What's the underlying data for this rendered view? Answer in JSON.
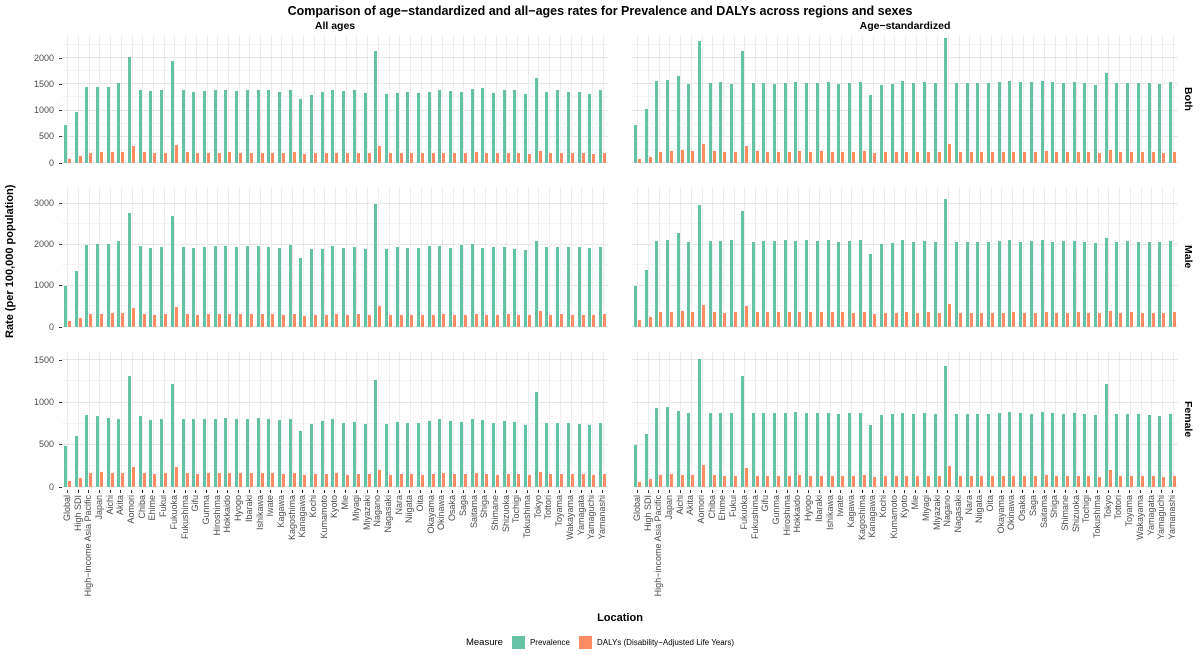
{
  "title": "Comparison of age−standardized and all−ages rates for Prevalence and DALYs across regions and sexes",
  "axes": {
    "y_title": "Rate (per 100,000 population)",
    "x_title": "Location"
  },
  "facets": {
    "columns": [
      "All ages",
      "Age−standardized"
    ],
    "rows": [
      "Both",
      "Male",
      "Female"
    ]
  },
  "legend": {
    "title": "Measure",
    "items": [
      {
        "label": "Prevalence",
        "color": "#66C2A5"
      },
      {
        "label": "DALYs (Disability−Adjusted Life Years)",
        "color": "#FC8D62"
      }
    ]
  },
  "colors": {
    "prevalence": "#66C2A5",
    "dalys": "#FC8D62",
    "grid_major": "#e7e7e7",
    "grid_minor": "#f4f4f4",
    "grid_vertical": "#ededed",
    "axis_text": "#4d4d4d"
  },
  "chart_data": {
    "type": "bar",
    "categories": [
      "Global",
      "High SDI",
      "High−income Asia Pacific",
      "Japan",
      "Aichi",
      "Akita",
      "Aomori",
      "Chiba",
      "Ehime",
      "Fukui",
      "Fukuoka",
      "Fukushima",
      "Gifu",
      "Gunma",
      "Hiroshima",
      "Hokkaido",
      "Hyogo",
      "Ibaraki",
      "Ishikawa",
      "Iwate",
      "Kagawa",
      "Kagoshima",
      "Kanagawa",
      "Kochi",
      "Kumamoto",
      "Kyoto",
      "Mie",
      "Miyagi",
      "Miyazaki",
      "Nagano",
      "Nagasaki",
      "Nara",
      "Niigata",
      "Oita",
      "Okayama",
      "Okinawa",
      "Osaka",
      "Saga",
      "Saitama",
      "Shiga",
      "Shimane",
      "Shizuoka",
      "Tochigi",
      "Tokushima",
      "Tokyo",
      "Tottori",
      "Toyama",
      "Wakayama",
      "Yamagata",
      "Yamaguchi",
      "Yamanashi"
    ],
    "legend_position": "bottom",
    "grid": true,
    "panels": [
      {
        "row": "Both",
        "col": "All ages",
        "ylim": [
          0,
          2440
        ],
        "yticks": [
          0,
          500,
          1000,
          1500,
          2000
        ],
        "series": [
          {
            "name": "Prevalence",
            "values": [
              725,
              980,
              1440,
              1450,
              1440,
              1520,
              2030,
              1400,
              1370,
              1390,
              1940,
              1400,
              1350,
              1370,
              1390,
              1400,
              1370,
              1390,
              1400,
              1390,
              1350,
              1400,
              1220,
              1300,
              1350,
              1390,
              1370,
              1390,
              1340,
              2140,
              1320,
              1330,
              1350,
              1330,
              1350,
              1400,
              1370,
              1350,
              1420,
              1430,
              1340,
              1390,
              1390,
              1320,
              1620,
              1350,
              1400,
              1360,
              1350,
              1310,
              1390
            ]
          },
          {
            "name": "DALYs (Disability−Adjusted Life Years)",
            "values": [
              85,
              135,
              200,
              210,
              215,
              215,
              330,
              205,
              195,
              200,
              340,
              205,
              195,
              200,
              200,
              205,
              200,
              200,
              200,
              200,
              195,
              205,
              175,
              190,
              195,
              200,
              185,
              195,
              190,
              330,
              185,
              185,
              190,
              185,
              190,
              200,
              195,
              190,
              205,
              200,
              185,
              195,
              195,
              180,
              230,
              190,
              195,
              190,
              190,
              180,
              195
            ]
          }
        ]
      },
      {
        "row": "Both",
        "col": "Age−standardized",
        "ylim": [
          0,
          2440
        ],
        "yticks": [
          0,
          500,
          1000,
          1500,
          2000
        ],
        "series": [
          {
            "name": "Prevalence",
            "values": [
              730,
              1030,
              1560,
              1590,
              1650,
              1510,
              2330,
              1530,
              1550,
              1510,
              2140,
              1530,
              1530,
              1510,
              1530,
              1550,
              1530,
              1530,
              1540,
              1510,
              1530,
              1550,
              1300,
              1480,
              1510,
              1560,
              1520,
              1540,
              1520,
              2390,
              1520,
              1530,
              1520,
              1520,
              1540,
              1560,
              1540,
              1540,
              1560,
              1540,
              1520,
              1540,
              1520,
              1480,
              1720,
              1520,
              1530,
              1520,
              1520,
              1500,
              1540
            ]
          },
          {
            "name": "DALYs (Disability−Adjusted Life Years)",
            "values": [
              70,
              115,
              215,
              230,
              245,
              220,
              355,
              220,
              215,
              215,
              320,
              220,
              215,
              215,
              215,
              220,
              215,
              220,
              215,
              215,
              210,
              220,
              190,
              205,
              210,
              215,
              205,
              210,
              205,
              360,
              205,
              205,
              205,
              205,
              210,
              215,
              210,
              210,
              220,
              215,
              205,
              210,
              210,
              200,
              245,
              205,
              210,
              205,
              205,
              200,
              210
            ]
          }
        ]
      },
      {
        "row": "Male",
        "col": "All ages",
        "ylim": [
          0,
          3410
        ],
        "yticks": [
          0,
          1000,
          2000,
          3000
        ],
        "series": [
          {
            "name": "Prevalence",
            "values": [
              1000,
              1360,
              1990,
              2010,
              2020,
              2100,
              2770,
              1980,
              1920,
              1960,
              2700,
              1940,
              1930,
              1940,
              1970,
              1980,
              1940,
              1980,
              1980,
              1960,
              1930,
              1990,
              1680,
              1890,
              1890,
              1970,
              1930,
              1960,
              1900,
              2990,
              1900,
              1940,
              1930,
              1930,
              1970,
              1980,
              1930,
              2000,
              2020,
              1930,
              1960,
              1940,
              1900,
              1870,
              2100,
              1940,
              1960,
              1940,
              1960,
              1920,
              1960
            ]
          },
          {
            "name": "DALYs (Disability−Adjusted Life Years)",
            "values": [
              150,
              210,
              310,
              320,
              330,
              330,
              470,
              315,
              300,
              310,
              480,
              315,
              300,
              310,
              310,
              315,
              305,
              315,
              310,
              315,
              300,
              315,
              270,
              295,
              295,
              305,
              290,
              305,
              295,
              500,
              290,
              295,
              300,
              290,
              300,
              310,
              300,
              300,
              320,
              300,
              295,
              305,
              300,
              285,
              380,
              295,
              305,
              295,
              300,
              285,
              305
            ]
          }
        ]
      },
      {
        "row": "Male",
        "col": "Age−standardized",
        "ylim": [
          0,
          3410
        ],
        "yticks": [
          0,
          1000,
          2000,
          3000
        ],
        "series": [
          {
            "name": "Prevalence",
            "values": [
              1000,
              1400,
              2090,
              2130,
              2280,
              2070,
              2960,
              2090,
              2090,
              2110,
              2830,
              2070,
              2090,
              2090,
              2110,
              2090,
              2110,
              2090,
              2120,
              2070,
              2090,
              2110,
              1780,
              2020,
              2050,
              2120,
              2060,
              2090,
              2060,
              3130,
              2060,
              2080,
              2070,
              2070,
              2100,
              2110,
              2080,
              2090,
              2120,
              2080,
              2090,
              2090,
              2060,
              2040,
              2170,
              2080,
              2090,
              2080,
              2080,
              2060,
              2090
            ]
          },
          {
            "name": "DALYs (Disability−Adjusted Life Years)",
            "values": [
              170,
              235,
              355,
              370,
              390,
              360,
              530,
              365,
              350,
              360,
              510,
              360,
              355,
              360,
              360,
              365,
              360,
              365,
              360,
              360,
              350,
              365,
              315,
              345,
              345,
              355,
              340,
              355,
              345,
              550,
              340,
              345,
              350,
              340,
              350,
              360,
              350,
              350,
              370,
              350,
              345,
              355,
              350,
              335,
              395,
              345,
              355,
              345,
              350,
              335,
              355
            ]
          }
        ]
      },
      {
        "row": "Female",
        "col": "All ages",
        "ylim": [
          0,
          1610
        ],
        "yticks": [
          0,
          500,
          1000,
          1500
        ],
        "series": [
          {
            "name": "Prevalence",
            "values": [
              490,
              600,
              850,
              835,
              820,
              800,
              1320,
              835,
              790,
              805,
              1215,
              800,
              805,
              805,
              810,
              820,
              805,
              800,
              815,
              800,
              790,
              810,
              660,
              745,
              780,
              800,
              760,
              775,
              750,
              1270,
              750,
              765,
              760,
              755,
              780,
              805,
              785,
              775,
              810,
              795,
              760,
              785,
              775,
              740,
              1125,
              760,
              760,
              755,
              745,
              740,
              760
            ]
          },
          {
            "name": "DALYs (Disability−Adjusted Life Years)",
            "values": [
              70,
              105,
              170,
              178,
              170,
              170,
              235,
              165,
              155,
              160,
              235,
              160,
              155,
              160,
              160,
              165,
              160,
              160,
              160,
              160,
              155,
              165,
              140,
              150,
              155,
              160,
              145,
              155,
              150,
              205,
              145,
              150,
              150,
              145,
              150,
              160,
              155,
              150,
              165,
              155,
              145,
              155,
              150,
              140,
              180,
              150,
              155,
              150,
              150,
              140,
              155
            ]
          }
        ]
      },
      {
        "row": "Female",
        "col": "Age−standardized",
        "ylim": [
          0,
          1610
        ],
        "yticks": [
          0,
          500,
          1000,
          1500
        ],
        "series": [
          {
            "name": "Prevalence",
            "values": [
              495,
              625,
              940,
              950,
              900,
              875,
              1515,
              880,
              875,
              880,
              1320,
              875,
              875,
              875,
              880,
              885,
              880,
              875,
              880,
              865,
              875,
              880,
              735,
              855,
              860,
              880,
              865,
              875,
              860,
              1435,
              860,
              870,
              865,
              860,
              875,
              885,
              875,
              870,
              885,
              875,
              860,
              875,
              865,
              850,
              1220,
              865,
              865,
              860,
              855,
              845,
              870
            ]
          },
          {
            "name": "DALYs (Disability−Adjusted Life Years)",
            "values": [
              65,
              90,
              140,
              150,
              145,
              140,
              260,
              140,
              135,
              135,
              220,
              135,
              135,
              135,
              135,
              140,
              135,
              135,
              135,
              135,
              130,
              140,
              120,
              130,
              130,
              135,
              125,
              135,
              130,
              245,
              125,
              130,
              130,
              125,
              130,
              135,
              130,
              130,
              140,
              135,
              125,
              135,
              130,
              120,
              200,
              130,
              135,
              130,
              130,
              120,
              135
            ]
          }
        ]
      }
    ]
  }
}
